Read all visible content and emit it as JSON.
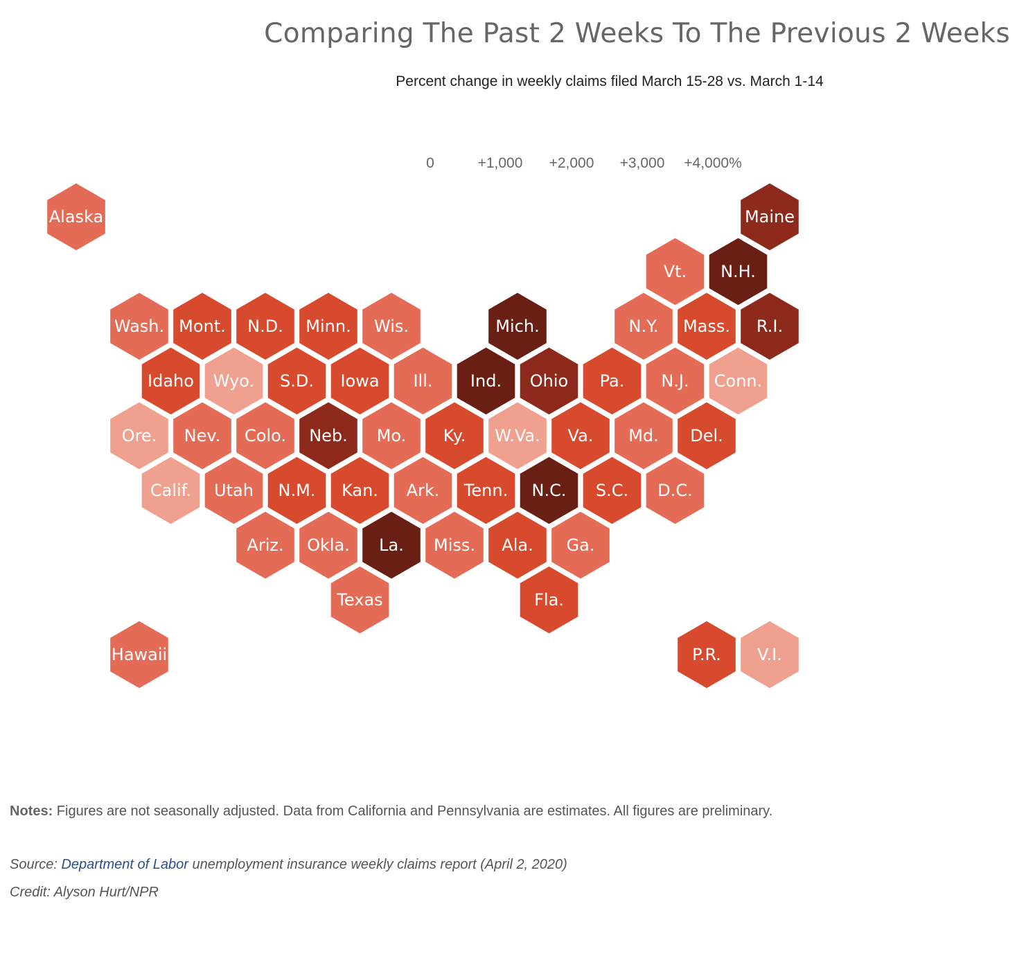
{
  "title": "Comparing The Past 2 Weeks To The Previous 2 Weeks",
  "subtitle": "Percent change in weekly claims filed March 15-28 vs. March 1-14",
  "legend": {
    "ticks": [
      "0",
      "+1,000",
      "+2,000",
      "+3,000",
      "+4,000%"
    ],
    "colors": [
      "#f6c8bd",
      "#efa08f",
      "#e46c57",
      "#d84a2e",
      "#b13a23",
      "#8e2a1c",
      "#6a1f14"
    ]
  },
  "chart_data": {
    "type": "heatmap",
    "map_type": "hex tile grid of U.S. states and territories",
    "color_scale": "percent change, light to dark",
    "states": [
      {
        "label": "Alaska",
        "row": 0,
        "col": 0,
        "level": 3
      },
      {
        "label": "Maine",
        "row": 0,
        "col": 11,
        "level": 6
      },
      {
        "label": "Vt.",
        "row": 1,
        "col": 9.5,
        "level": 3
      },
      {
        "label": "N.H.",
        "row": 1,
        "col": 10.5,
        "level": 7
      },
      {
        "label": "Wash.",
        "row": 2,
        "col": 1,
        "level": 3
      },
      {
        "label": "Mont.",
        "row": 2,
        "col": 2,
        "level": 4
      },
      {
        "label": "N.D.",
        "row": 2,
        "col": 3,
        "level": 4
      },
      {
        "label": "Minn.",
        "row": 2,
        "col": 4,
        "level": 4
      },
      {
        "label": "Wis.",
        "row": 2,
        "col": 5,
        "level": 3
      },
      {
        "label": "Mich.",
        "row": 2,
        "col": 7,
        "level": 7
      },
      {
        "label": "N.Y.",
        "row": 2,
        "col": 9,
        "level": 3
      },
      {
        "label": "Mass.",
        "row": 2,
        "col": 10,
        "level": 4
      },
      {
        "label": "R.I.",
        "row": 2,
        "col": 11,
        "level": 6
      },
      {
        "label": "Idaho",
        "row": 3,
        "col": 1.5,
        "level": 4
      },
      {
        "label": "Wyo.",
        "row": 3,
        "col": 2.5,
        "level": 2
      },
      {
        "label": "S.D.",
        "row": 3,
        "col": 3.5,
        "level": 4
      },
      {
        "label": "Iowa",
        "row": 3,
        "col": 4.5,
        "level": 4
      },
      {
        "label": "Ill.",
        "row": 3,
        "col": 5.5,
        "level": 3
      },
      {
        "label": "Ind.",
        "row": 3,
        "col": 6.5,
        "level": 7
      },
      {
        "label": "Ohio",
        "row": 3,
        "col": 7.5,
        "level": 6
      },
      {
        "label": "Pa.",
        "row": 3,
        "col": 8.5,
        "level": 4
      },
      {
        "label": "N.J.",
        "row": 3,
        "col": 9.5,
        "level": 3
      },
      {
        "label": "Conn.",
        "row": 3,
        "col": 10.5,
        "level": 2
      },
      {
        "label": "Ore.",
        "row": 4,
        "col": 1,
        "level": 2
      },
      {
        "label": "Nev.",
        "row": 4,
        "col": 2,
        "level": 3
      },
      {
        "label": "Colo.",
        "row": 4,
        "col": 3,
        "level": 3
      },
      {
        "label": "Neb.",
        "row": 4,
        "col": 4,
        "level": 6
      },
      {
        "label": "Mo.",
        "row": 4,
        "col": 5,
        "level": 3
      },
      {
        "label": "Ky.",
        "row": 4,
        "col": 6,
        "level": 4
      },
      {
        "label": "W.Va.",
        "row": 4,
        "col": 7,
        "level": 2
      },
      {
        "label": "Va.",
        "row": 4,
        "col": 8,
        "level": 4
      },
      {
        "label": "Md.",
        "row": 4,
        "col": 9,
        "level": 3
      },
      {
        "label": "Del.",
        "row": 4,
        "col": 10,
        "level": 4
      },
      {
        "label": "Calif.",
        "row": 5,
        "col": 1.5,
        "level": 2
      },
      {
        "label": "Utah",
        "row": 5,
        "col": 2.5,
        "level": 3
      },
      {
        "label": "N.M.",
        "row": 5,
        "col": 3.5,
        "level": 4
      },
      {
        "label": "Kan.",
        "row": 5,
        "col": 4.5,
        "level": 4
      },
      {
        "label": "Ark.",
        "row": 5,
        "col": 5.5,
        "level": 3
      },
      {
        "label": "Tenn.",
        "row": 5,
        "col": 6.5,
        "level": 4
      },
      {
        "label": "N.C.",
        "row": 5,
        "col": 7.5,
        "level": 7
      },
      {
        "label": "S.C.",
        "row": 5,
        "col": 8.5,
        "level": 4
      },
      {
        "label": "D.C.",
        "row": 5,
        "col": 9.5,
        "level": 3
      },
      {
        "label": "Ariz.",
        "row": 6,
        "col": 3,
        "level": 3
      },
      {
        "label": "Okla.",
        "row": 6,
        "col": 4,
        "level": 3
      },
      {
        "label": "La.",
        "row": 6,
        "col": 5,
        "level": 7
      },
      {
        "label": "Miss.",
        "row": 6,
        "col": 6,
        "level": 3
      },
      {
        "label": "Ala.",
        "row": 6,
        "col": 7,
        "level": 4
      },
      {
        "label": "Ga.",
        "row": 6,
        "col": 8,
        "level": 3
      },
      {
        "label": "Texas",
        "row": 7,
        "col": 4.5,
        "level": 3
      },
      {
        "label": "Fla.",
        "row": 7,
        "col": 7.5,
        "level": 4
      },
      {
        "label": "Hawaii",
        "row": 8,
        "col": 1,
        "level": 3
      },
      {
        "label": "P.R.",
        "row": 8,
        "col": 10,
        "level": 4
      },
      {
        "label": "V.I.",
        "row": 8,
        "col": 11,
        "level": 2
      }
    ]
  },
  "notes": {
    "label": "Notes:",
    "text": " Figures are not seasonally adjusted. Data from California and Pennsylvania are estimates. All figures are preliminary."
  },
  "source": {
    "prefix": "Source: ",
    "link_text": "Department of Labor",
    "suffix": " unemployment insurance weekly claims report (April 2, 2020)"
  },
  "credit": "Credit: Alyson Hurt/NPR"
}
